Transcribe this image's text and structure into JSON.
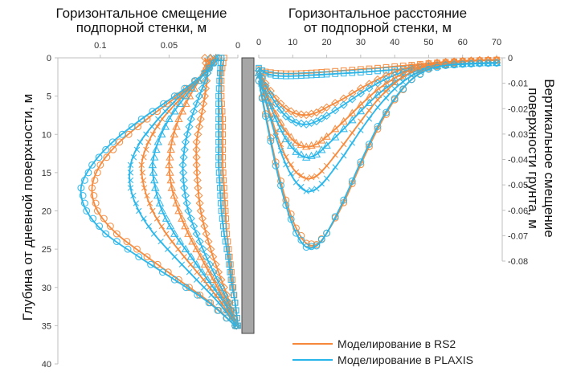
{
  "colors": {
    "rs2": "#f5883a",
    "plaxis": "#27b5ea",
    "wall": "#a6a6a6",
    "axis": "#bfbfbf"
  },
  "legend": {
    "rs2": "Моделирование в RS2",
    "plaxis": "Моделирование в PLAXIS"
  },
  "chart_data": [
    {
      "type": "line",
      "title_lines": [
        "Горизонтальное смещение",
        "подпорной стенки, м"
      ],
      "ylabel": "Глубина от дневной поверхности, м",
      "x_reversed": true,
      "xlim": [
        0,
        0.125
      ],
      "ylim": [
        0,
        40
      ],
      "x_ticks": [
        {
          "value": 0.1,
          "label": "0.1"
        },
        {
          "value": 0.05,
          "label": "0.05"
        },
        {
          "value": 0,
          "label": "0"
        }
      ],
      "y_ticks": [
        {
          "value": 0,
          "label": "0"
        },
        {
          "value": 5,
          "label": "5"
        },
        {
          "value": 10,
          "label": "10"
        },
        {
          "value": 15,
          "label": "15"
        },
        {
          "value": 20,
          "label": "20"
        },
        {
          "value": 25,
          "label": "25"
        },
        {
          "value": 30,
          "label": "30"
        },
        {
          "value": 35,
          "label": "35"
        },
        {
          "value": 40,
          "label": "40"
        }
      ],
      "series_points_depth": [
        0,
        2,
        5,
        8,
        11,
        14,
        17,
        20,
        23,
        26,
        29,
        32,
        35
      ],
      "series": [
        {
          "software": "RS2",
          "marker": "square",
          "displacements": [
            0.01,
            0.012,
            0.012,
            0.011,
            0.011,
            0.011,
            0.01,
            0.009,
            0.008,
            0.006,
            0.004,
            0.002,
            0.0
          ]
        },
        {
          "software": "PLAXIS",
          "marker": "square",
          "displacements": [
            0.012,
            0.013,
            0.014,
            0.014,
            0.014,
            0.014,
            0.013,
            0.012,
            0.01,
            0.007,
            0.005,
            0.002,
            0.0
          ]
        },
        {
          "software": "RS2",
          "marker": "diamond",
          "displacements": [
            0.024,
            0.022,
            0.024,
            0.027,
            0.03,
            0.03,
            0.029,
            0.027,
            0.023,
            0.018,
            0.012,
            0.006,
            0.001
          ]
        },
        {
          "software": "PLAXIS",
          "marker": "diamond",
          "displacements": [
            0.02,
            0.022,
            0.028,
            0.034,
            0.038,
            0.04,
            0.039,
            0.036,
            0.03,
            0.023,
            0.015,
            0.007,
            0.001
          ]
        },
        {
          "software": "RS2",
          "marker": "triangle",
          "displacements": [
            0.02,
            0.025,
            0.035,
            0.043,
            0.048,
            0.05,
            0.048,
            0.043,
            0.036,
            0.027,
            0.018,
            0.009,
            0.001
          ]
        },
        {
          "software": "PLAXIS",
          "marker": "triangle",
          "displacements": [
            0.016,
            0.024,
            0.038,
            0.05,
            0.058,
            0.062,
            0.06,
            0.055,
            0.046,
            0.034,
            0.022,
            0.01,
            0.001
          ]
        },
        {
          "software": "RS2",
          "marker": "x",
          "displacements": [
            0.018,
            0.025,
            0.04,
            0.055,
            0.065,
            0.07,
            0.068,
            0.062,
            0.052,
            0.039,
            0.025,
            0.012,
            0.001
          ]
        },
        {
          "software": "PLAXIS",
          "marker": "x",
          "displacements": [
            0.016,
            0.024,
            0.042,
            0.058,
            0.071,
            0.078,
            0.078,
            0.072,
            0.061,
            0.046,
            0.03,
            0.014,
            0.001
          ]
        },
        {
          "software": "RS2",
          "marker": "circle",
          "displacements": [
            0.015,
            0.024,
            0.044,
            0.066,
            0.086,
            0.1,
            0.106,
            0.102,
            0.088,
            0.066,
            0.043,
            0.02,
            0.002
          ]
        },
        {
          "software": "PLAXIS",
          "marker": "circle",
          "displacements": [
            0.014,
            0.024,
            0.046,
            0.07,
            0.091,
            0.106,
            0.114,
            0.11,
            0.096,
            0.072,
            0.046,
            0.021,
            0.002
          ]
        }
      ]
    },
    {
      "type": "line",
      "title_lines": [
        "Горизонтальное расстояние",
        "от подпорной стенки, м"
      ],
      "ylabel_lines": [
        "Вертикальное смещение",
        "поверхности грунта, м"
      ],
      "xlim": [
        0,
        70
      ],
      "ylim": [
        -0.08,
        0
      ],
      "x_ticks": [
        {
          "value": 0,
          "label": "0"
        },
        {
          "value": 10,
          "label": "10"
        },
        {
          "value": 20,
          "label": "20"
        },
        {
          "value": 30,
          "label": "30"
        },
        {
          "value": 40,
          "label": "40"
        },
        {
          "value": 50,
          "label": "50"
        },
        {
          "value": 60,
          "label": "60"
        },
        {
          "value": 70,
          "label": "70"
        }
      ],
      "y_ticks": [
        {
          "value": 0,
          "label": "0"
        },
        {
          "value": -0.01,
          "label": "-0.01"
        },
        {
          "value": -0.02,
          "label": "-0.02"
        },
        {
          "value": -0.03,
          "label": "-0.03"
        },
        {
          "value": -0.04,
          "label": "-0.04"
        },
        {
          "value": -0.05,
          "label": "-0.05"
        },
        {
          "value": -0.06,
          "label": "-0.06"
        },
        {
          "value": -0.07,
          "label": "-0.07"
        },
        {
          "value": -0.08,
          "label": "-0.08"
        }
      ],
      "x": [
        0,
        2,
        5,
        8,
        11,
        14,
        17,
        20,
        25,
        30,
        35,
        40,
        45,
        50,
        55,
        60,
        65,
        70
      ],
      "series": [
        {
          "software": "RS2",
          "marker": "square",
          "settlement": [
            -0.0045,
            -0.0055,
            -0.006,
            -0.0062,
            -0.0062,
            -0.006,
            -0.0058,
            -0.0055,
            -0.005,
            -0.0045,
            -0.004,
            -0.0034,
            -0.0028,
            -0.0022,
            -0.0017,
            -0.0013,
            -0.001,
            -0.0008
          ]
        },
        {
          "software": "PLAXIS",
          "marker": "square",
          "settlement": [
            -0.004,
            -0.006,
            -0.007,
            -0.0072,
            -0.0071,
            -0.0069,
            -0.0067,
            -0.0065,
            -0.0061,
            -0.0057,
            -0.0052,
            -0.0047,
            -0.0041,
            -0.0034,
            -0.0028,
            -0.0024,
            -0.0021,
            -0.002
          ]
        },
        {
          "software": "RS2",
          "marker": "diamond",
          "settlement": [
            -0.005,
            -0.01,
            -0.016,
            -0.02,
            -0.022,
            -0.0225,
            -0.0215,
            -0.0195,
            -0.016,
            -0.012,
            -0.0085,
            -0.0055,
            -0.0035,
            -0.0022,
            -0.0016,
            -0.0012,
            -0.0009,
            -0.0008
          ]
        },
        {
          "software": "PLAXIS",
          "marker": "diamond",
          "settlement": [
            -0.005,
            -0.011,
            -0.018,
            -0.023,
            -0.0255,
            -0.0262,
            -0.025,
            -0.0228,
            -0.0185,
            -0.014,
            -0.01,
            -0.0068,
            -0.0045,
            -0.0032,
            -0.0026,
            -0.0023,
            -0.0021,
            -0.002
          ]
        },
        {
          "software": "RS2",
          "marker": "triangle",
          "settlement": [
            -0.006,
            -0.013,
            -0.022,
            -0.029,
            -0.0335,
            -0.035,
            -0.034,
            -0.031,
            -0.025,
            -0.0185,
            -0.0125,
            -0.008,
            -0.0045,
            -0.0027,
            -0.0018,
            -0.0013,
            -0.001,
            -0.0008
          ]
        },
        {
          "software": "PLAXIS",
          "marker": "triangle",
          "settlement": [
            -0.006,
            -0.014,
            -0.024,
            -0.032,
            -0.037,
            -0.0392,
            -0.038,
            -0.0345,
            -0.028,
            -0.021,
            -0.0145,
            -0.0095,
            -0.0058,
            -0.0038,
            -0.0028,
            -0.0024,
            -0.0021,
            -0.002
          ]
        },
        {
          "software": "RS2",
          "marker": "x",
          "settlement": [
            -0.007,
            -0.016,
            -0.029,
            -0.039,
            -0.045,
            -0.0475,
            -0.0465,
            -0.0425,
            -0.034,
            -0.025,
            -0.0165,
            -0.01,
            -0.0055,
            -0.003,
            -0.0019,
            -0.0013,
            -0.001,
            -0.0008
          ]
        },
        {
          "software": "PLAXIS",
          "marker": "x",
          "settlement": [
            -0.007,
            -0.017,
            -0.031,
            -0.042,
            -0.049,
            -0.0525,
            -0.0515,
            -0.0475,
            -0.0385,
            -0.0285,
            -0.0195,
            -0.0122,
            -0.007,
            -0.0042,
            -0.003,
            -0.0024,
            -0.0021,
            -0.002
          ]
        },
        {
          "software": "RS2",
          "marker": "circle",
          "settlement": [
            -0.009,
            -0.022,
            -0.041,
            -0.056,
            -0.067,
            -0.073,
            -0.0735,
            -0.069,
            -0.057,
            -0.042,
            -0.028,
            -0.0165,
            -0.0085,
            -0.0042,
            -0.0024,
            -0.0015,
            -0.0011,
            -0.0009
          ]
        },
        {
          "software": "PLAXIS",
          "marker": "circle",
          "settlement": [
            -0.009,
            -0.023,
            -0.0425,
            -0.058,
            -0.069,
            -0.0745,
            -0.074,
            -0.069,
            -0.056,
            -0.041,
            -0.027,
            -0.016,
            -0.0085,
            -0.0045,
            -0.003,
            -0.0025,
            -0.0022,
            -0.002
          ]
        }
      ]
    }
  ]
}
